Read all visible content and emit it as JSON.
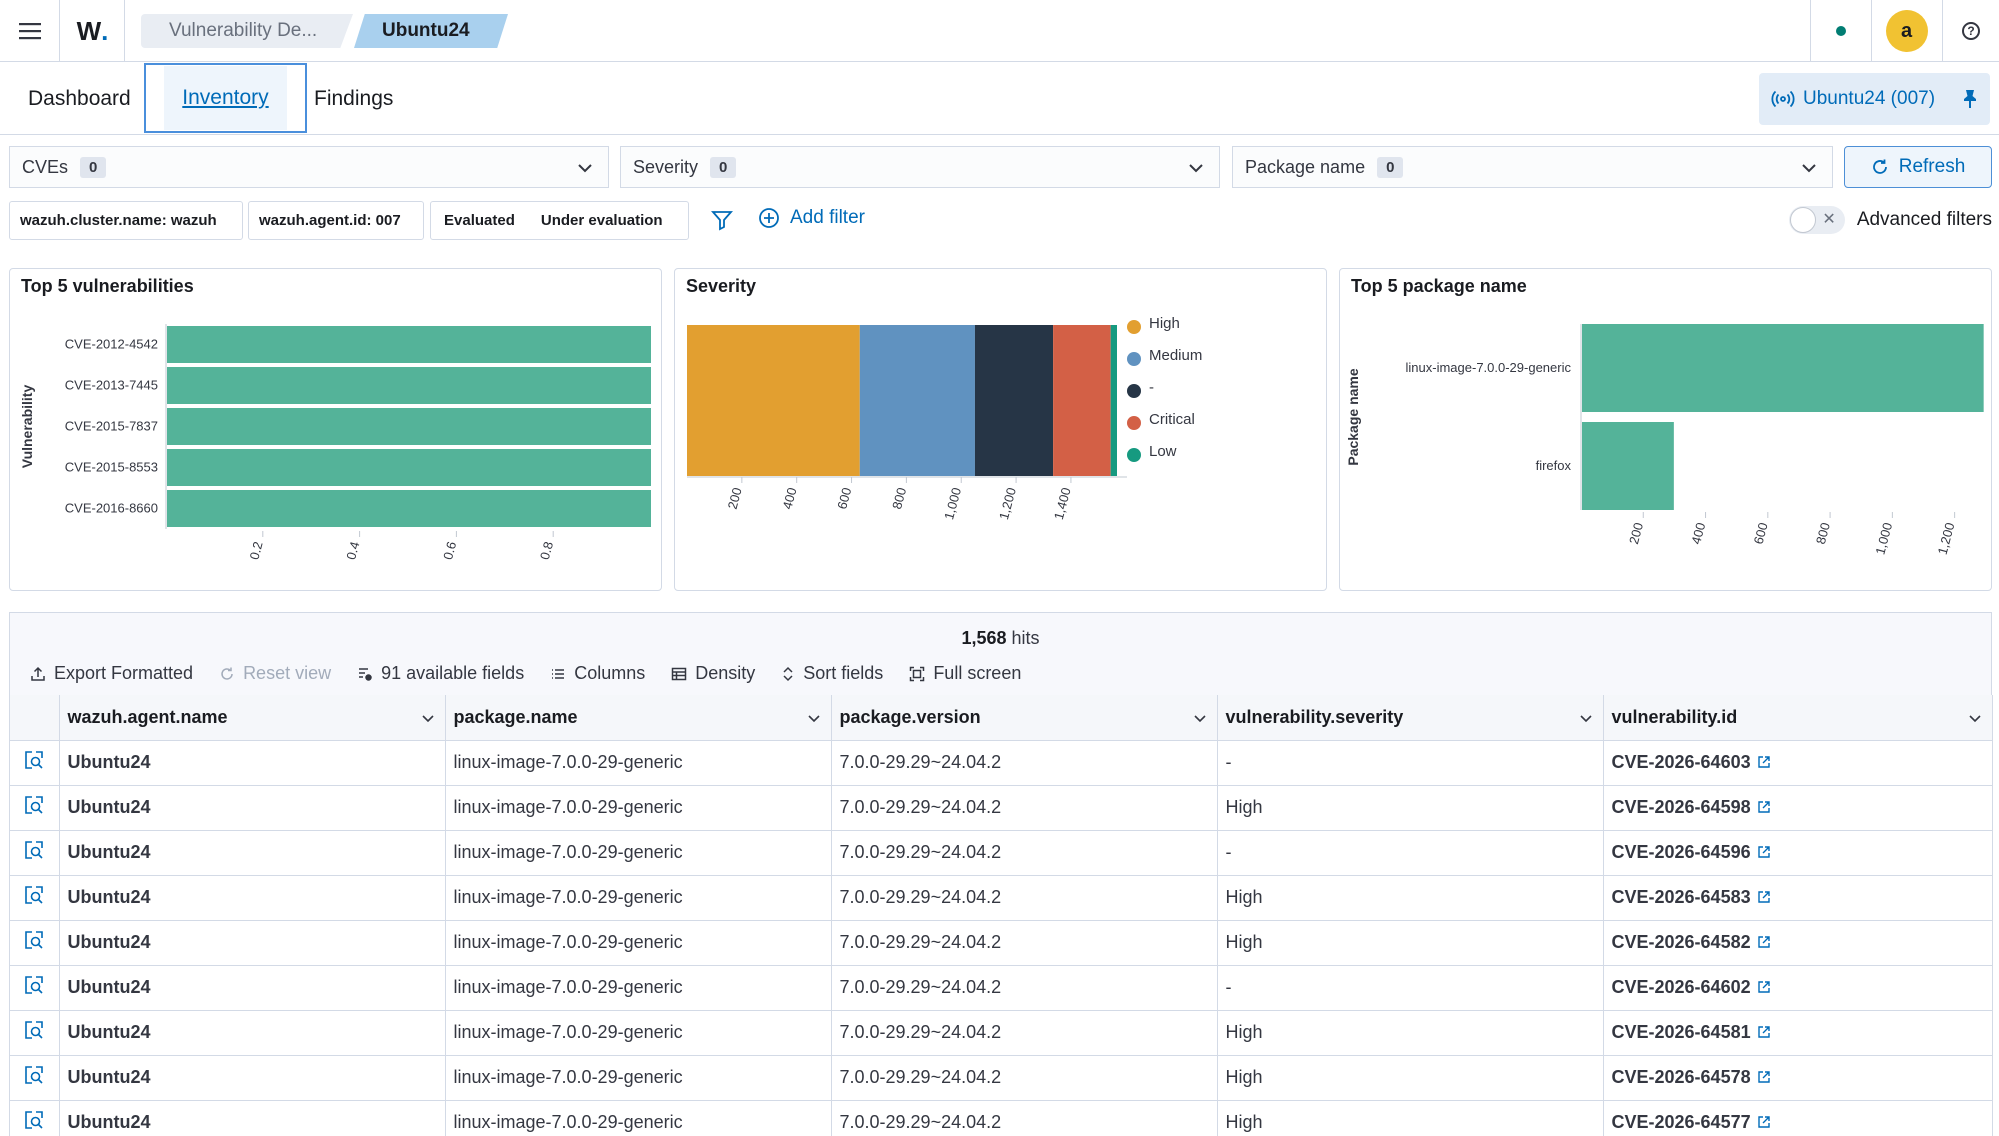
{
  "header": {
    "breadcrumbs": [
      "Vulnerability De...",
      "Ubuntu24"
    ],
    "avatar_letter": "a",
    "status_color": "#017d73"
  },
  "tabs": {
    "dashboard": "Dashboard",
    "inventory": "Inventory",
    "findings": "Findings",
    "active": "Inventory"
  },
  "agent_button": {
    "label": "Ubuntu24 (007)"
  },
  "selectors": [
    {
      "label": "CVEs",
      "count": "0"
    },
    {
      "label": "Severity",
      "count": "0"
    },
    {
      "label": "Package name",
      "count": "0"
    }
  ],
  "refresh_label": "Refresh",
  "filters": {
    "pill_cluster": "wazuh.cluster.name: wazuh",
    "pill_agent": "wazuh.agent.id: 007",
    "pill_evaluated": "Evaluated",
    "pill_under_eval": "Under evaluation",
    "add_filter": "Add filter",
    "advanced": "Advanced filters"
  },
  "chart_data": [
    {
      "type": "bar",
      "orientation": "horizontal",
      "title": "Top 5 vulnerabilities",
      "ylabel": "Vulnerability",
      "categories": [
        "CVE-2012-4542",
        "CVE-2013-7445",
        "CVE-2015-7837",
        "CVE-2015-8553",
        "CVE-2016-8660"
      ],
      "values": [
        1,
        1,
        1,
        1,
        1
      ],
      "xticks": [
        "0.2",
        "0.4",
        "0.6",
        "0.8"
      ],
      "xlim": [
        0,
        1
      ],
      "color": "#54b399"
    },
    {
      "type": "bar",
      "orientation": "stacked-horizontal",
      "title": "Severity",
      "series": [
        {
          "name": "High",
          "value": 630,
          "color": "#e29f30"
        },
        {
          "name": "Medium",
          "value": 420,
          "color": "#6092c0"
        },
        {
          "name": "-",
          "value": 285,
          "color": "#263546"
        },
        {
          "name": "Critical",
          "value": 210,
          "color": "#d36046"
        },
        {
          "name": "Low",
          "value": 23,
          "color": "#169a80"
        }
      ],
      "xticks": [
        "200",
        "400",
        "600",
        "800",
        "1,000",
        "1,200",
        "1,400"
      ],
      "xlim": [
        0,
        1568
      ],
      "legend": "right"
    },
    {
      "type": "bar",
      "orientation": "horizontal",
      "title": "Top 5 package name",
      "ylabel": "Package name",
      "categories": [
        "linux-image-7.0.0-29-generic",
        "firefox"
      ],
      "values": [
        1290,
        295
      ],
      "xticks": [
        "200",
        "400",
        "600",
        "800",
        "1,000",
        "1,200"
      ],
      "xlim": [
        0,
        1320
      ],
      "color": "#54b399"
    }
  ],
  "table": {
    "hits_count": "1,568",
    "hits_label": "hits",
    "toolbar": {
      "export": "Export Formatted",
      "reset": "Reset view",
      "fields": "91 available fields",
      "columns": "Columns",
      "density": "Density",
      "sort": "Sort fields",
      "fullscreen": "Full screen"
    },
    "columns": [
      "wazuh.agent.name",
      "package.name",
      "package.version",
      "vulnerability.severity",
      "vulnerability.id"
    ],
    "rows": [
      [
        "Ubuntu24",
        "linux-image-7.0.0-29-generic",
        "7.0.0-29.29~24.04.2",
        "-",
        "CVE-2026-64603"
      ],
      [
        "Ubuntu24",
        "linux-image-7.0.0-29-generic",
        "7.0.0-29.29~24.04.2",
        "High",
        "CVE-2026-64598"
      ],
      [
        "Ubuntu24",
        "linux-image-7.0.0-29-generic",
        "7.0.0-29.29~24.04.2",
        "-",
        "CVE-2026-64596"
      ],
      [
        "Ubuntu24",
        "linux-image-7.0.0-29-generic",
        "7.0.0-29.29~24.04.2",
        "High",
        "CVE-2026-64583"
      ],
      [
        "Ubuntu24",
        "linux-image-7.0.0-29-generic",
        "7.0.0-29.29~24.04.2",
        "High",
        "CVE-2026-64582"
      ],
      [
        "Ubuntu24",
        "linux-image-7.0.0-29-generic",
        "7.0.0-29.29~24.04.2",
        "-",
        "CVE-2026-64602"
      ],
      [
        "Ubuntu24",
        "linux-image-7.0.0-29-generic",
        "7.0.0-29.29~24.04.2",
        "High",
        "CVE-2026-64581"
      ],
      [
        "Ubuntu24",
        "linux-image-7.0.0-29-generic",
        "7.0.0-29.29~24.04.2",
        "High",
        "CVE-2026-64578"
      ],
      [
        "Ubuntu24",
        "linux-image-7.0.0-29-generic",
        "7.0.0-29.29~24.04.2",
        "High",
        "CVE-2026-64577"
      ]
    ]
  }
}
